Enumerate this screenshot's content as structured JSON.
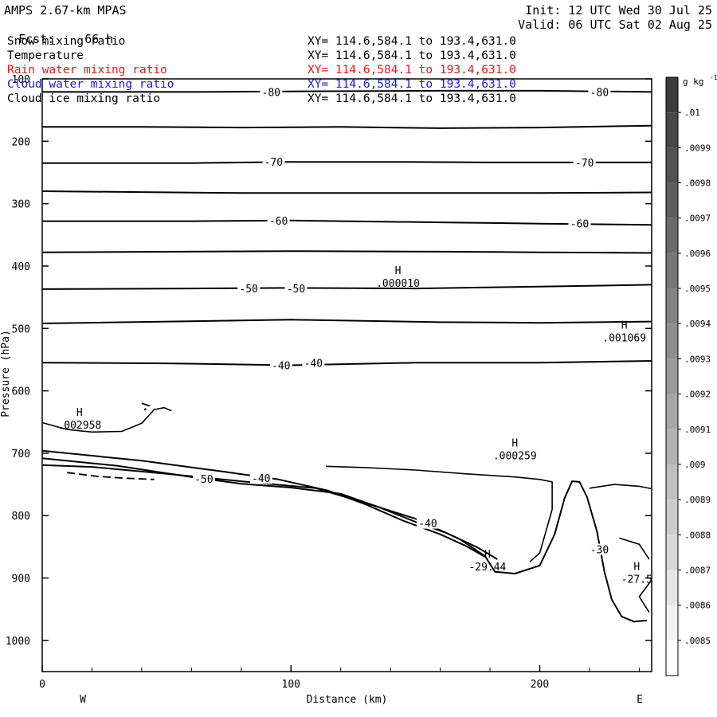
{
  "header": {
    "model": "AMPS 2.67-km MPAS",
    "fcst_label": "Fcst:",
    "fcst_value": "66 h",
    "init": "Init: 12 UTC Wed 30 Jul 25",
    "valid": "Valid: 06 UTC Sat 02 Aug 25"
  },
  "fields": [
    {
      "name": "Snow mixing ratio",
      "xy": "XY= 114.6,584.1 to 193.4,631.0",
      "color": "#000000"
    },
    {
      "name": "Temperature",
      "xy": "XY= 114.6,584.1 to 193.4,631.0",
      "color": "#000000"
    },
    {
      "name": "Rain water mixing ratio",
      "xy": "XY= 114.6,584.1 to 193.4,631.0",
      "color": "#e8161b"
    },
    {
      "name": "Cloud water mixing ratio",
      "xy": "XY= 114.6,584.1 to 193.4,631.0",
      "color": "#1a1adb"
    },
    {
      "name": "Cloud ice mixing ratio",
      "xy": "XY= 114.6,584.1 to 193.4,631.0",
      "color": "#000000"
    }
  ],
  "chart_data": {
    "type": "cross-section contour",
    "xlabel": "Distance (km)",
    "ylabel": "Pressure (hPa)",
    "xlim": [
      0,
      245
    ],
    "ylim": [
      1050,
      100
    ],
    "x_ticks": [
      "0",
      "100",
      "200"
    ],
    "x_tick_values": [
      0,
      100,
      200
    ],
    "y_ticks": [
      "100",
      "200",
      "300",
      "400",
      "500",
      "600",
      "700",
      "800",
      "900",
      "1000"
    ],
    "y_tick_values": [
      100,
      200,
      300,
      400,
      500,
      600,
      700,
      800,
      900,
      1000
    ],
    "left_end": "W",
    "right_end": "E",
    "colorbar": {
      "unit": "g kg",
      "unit_sup": "-1",
      "labels": [
        ".01",
        ".0099",
        ".0098",
        ".0097",
        ".0096",
        ".0095",
        ".0094",
        ".0093",
        ".0092",
        ".0091",
        ".009",
        ".0089",
        ".0088",
        ".0087",
        ".0086",
        ".0085"
      ],
      "colors": [
        "#3c3c3c",
        "#474747",
        "#525252",
        "#5e5e5e",
        "#6a6a6a",
        "#767676",
        "#828282",
        "#8e8e8e",
        "#9a9a9a",
        "#a6a6a6",
        "#b2b2b2",
        "#bfbfbf",
        "#cbcbcb",
        "#d8d8d8",
        "#e5e5e5",
        "#f1f1f1",
        "#ffffff"
      ]
    },
    "isotherms": [
      {
        "label": "-80",
        "points": [
          [
            0,
            121
          ],
          [
            60,
            121
          ],
          [
            100,
            120
          ],
          [
            160,
            119
          ],
          [
            200,
            119
          ],
          [
            245,
            121
          ]
        ]
      },
      {
        "label": "",
        "points": [
          [
            0,
            177
          ],
          [
            40,
            177
          ],
          [
            80,
            178
          ],
          [
            120,
            177
          ],
          [
            160,
            179
          ],
          [
            200,
            178
          ],
          [
            245,
            175
          ]
        ]
      },
      {
        "label": "-70",
        "points": [
          [
            0,
            235
          ],
          [
            60,
            235
          ],
          [
            100,
            233
          ],
          [
            140,
            233
          ],
          [
            180,
            234
          ],
          [
            245,
            234
          ]
        ]
      },
      {
        "label": "",
        "points": [
          [
            0,
            280
          ],
          [
            80,
            283
          ],
          [
            140,
            283
          ],
          [
            200,
            283
          ],
          [
            245,
            282
          ]
        ]
      },
      {
        "label": "-60",
        "points": [
          [
            0,
            328
          ],
          [
            60,
            328
          ],
          [
            100,
            327
          ],
          [
            160,
            330
          ],
          [
            200,
            332
          ],
          [
            245,
            334
          ]
        ]
      },
      {
        "label": "",
        "points": [
          [
            0,
            378
          ],
          [
            100,
            376
          ],
          [
            160,
            377
          ],
          [
            200,
            378
          ],
          [
            245,
            379
          ]
        ]
      },
      {
        "label": "-50",
        "points": [
          [
            0,
            437
          ],
          [
            60,
            436
          ],
          [
            100,
            435
          ],
          [
            150,
            436
          ],
          [
            200,
            433
          ],
          [
            245,
            430
          ]
        ]
      },
      {
        "label": "",
        "points": [
          [
            0,
            492
          ],
          [
            100,
            486
          ],
          [
            160,
            490
          ],
          [
            200,
            491
          ],
          [
            245,
            489
          ]
        ]
      },
      {
        "label": "-40",
        "points": [
          [
            0,
            555
          ],
          [
            50,
            556
          ],
          [
            100,
            559
          ],
          [
            150,
            555
          ],
          [
            200,
            555
          ],
          [
            245,
            552
          ]
        ]
      },
      {
        "label": "-50",
        "points": [
          [
            0,
            708
          ],
          [
            30,
            720
          ],
          [
            60,
            738
          ],
          [
            80,
            749
          ],
          [
            100,
            755
          ],
          [
            120,
            765
          ],
          [
            135,
            786
          ],
          [
            150,
            810
          ],
          [
            162,
            827
          ],
          [
            175,
            851
          ],
          [
            183,
            870
          ]
        ]
      },
      {
        "label": "-40",
        "points": [
          [
            0,
            696
          ],
          [
            40,
            712
          ],
          [
            70,
            728
          ],
          [
            95,
            742
          ],
          [
            115,
            760
          ],
          [
            130,
            782
          ],
          [
            145,
            808
          ],
          [
            160,
            830
          ],
          [
            170,
            848
          ],
          [
            178,
            866
          ]
        ]
      },
      {
        "label": "-29.44",
        "points": [
          [
            0,
            719
          ],
          [
            20,
            722
          ],
          [
            50,
            733
          ],
          [
            80,
            745
          ],
          [
            110,
            756
          ],
          [
            130,
            780
          ],
          [
            150,
            805
          ],
          [
            168,
            838
          ],
          [
            178,
            865
          ],
          [
            182,
            890
          ],
          [
            190,
            893
          ],
          [
            200,
            880
          ],
          [
            206,
            830
          ],
          [
            210,
            772
          ],
          [
            213,
            745
          ],
          [
            216,
            746
          ],
          [
            219,
            770
          ],
          [
            223,
            825
          ],
          [
            226,
            890
          ],
          [
            229,
            935
          ],
          [
            233,
            962
          ],
          [
            238,
            970
          ],
          [
            243,
            968
          ]
        ]
      }
    ],
    "hydrometeor_contours": [
      {
        "points": [
          [
            0,
            651
          ],
          [
            10,
            662
          ],
          [
            20,
            666
          ],
          [
            32,
            665
          ],
          [
            40,
            652
          ],
          [
            45,
            630
          ],
          [
            49,
            627
          ],
          [
            52,
            632
          ]
        ]
      },
      {
        "points": [
          [
            114,
            721
          ],
          [
            130,
            723
          ],
          [
            150,
            727
          ],
          [
            170,
            733
          ],
          [
            190,
            738
          ],
          [
            200,
            742
          ],
          [
            205,
            746
          ],
          [
            205,
            790
          ],
          [
            200,
            860
          ],
          [
            196,
            874
          ]
        ]
      },
      {
        "points": [
          [
            220,
            756
          ],
          [
            230,
            750
          ],
          [
            240,
            753
          ],
          [
            245,
            757
          ]
        ]
      },
      {
        "points": [
          [
            232,
            836
          ],
          [
            240,
            846
          ],
          [
            244,
            870
          ]
        ]
      },
      {
        "points": [
          [
            245,
            903
          ],
          [
            240,
            930
          ],
          [
            244,
            955
          ]
        ]
      }
    ],
    "dashed_contours": [
      {
        "points": [
          [
            40,
            620
          ],
          [
            43,
            624
          ],
          [
            41,
            631
          ]
        ]
      },
      {
        "points": [
          [
            10,
            731
          ],
          [
            22,
            737
          ],
          [
            33,
            740
          ],
          [
            45,
            742
          ]
        ]
      }
    ],
    "annotations": [
      {
        "letter": "H",
        "value": ".002958",
        "x": 15,
        "p": 658
      },
      {
        "letter": "H",
        "value": ".000010",
        "x": 143,
        "p": 431
      },
      {
        "letter": "H",
        "value": ".001069",
        "x": 234,
        "p": 518
      },
      {
        "letter": "H",
        "value": ".000259",
        "x": 190,
        "p": 707
      },
      {
        "letter": "H",
        "value": "-29.44",
        "x": 179,
        "p": 885
      },
      {
        "letter": "H",
        "value": "-27.5",
        "x": 239,
        "p": 905
      }
    ],
    "contour_labels": [
      {
        "text": "-80",
        "x": 92,
        "p": 121
      },
      {
        "text": "-80",
        "x": 224,
        "p": 121
      },
      {
        "text": "-70",
        "x": 93,
        "p": 233
      },
      {
        "text": "-70",
        "x": 218,
        "p": 234
      },
      {
        "text": "-60",
        "x": 95,
        "p": 327
      },
      {
        "text": "-60",
        "x": 216,
        "p": 332
      },
      {
        "text": "-50",
        "x": 83,
        "p": 436
      },
      {
        "text": "-50",
        "x": 102,
        "p": 436
      },
      {
        "text": "-40",
        "x": 96,
        "p": 559
      },
      {
        "text": "-40",
        "x": 109,
        "p": 555
      },
      {
        "text": "-50",
        "x": 65,
        "p": 741
      },
      {
        "text": "-40",
        "x": 88,
        "p": 740
      },
      {
        "text": "-40",
        "x": 155,
        "p": 812
      },
      {
        "text": "-30",
        "x": 224,
        "p": 854
      }
    ]
  }
}
